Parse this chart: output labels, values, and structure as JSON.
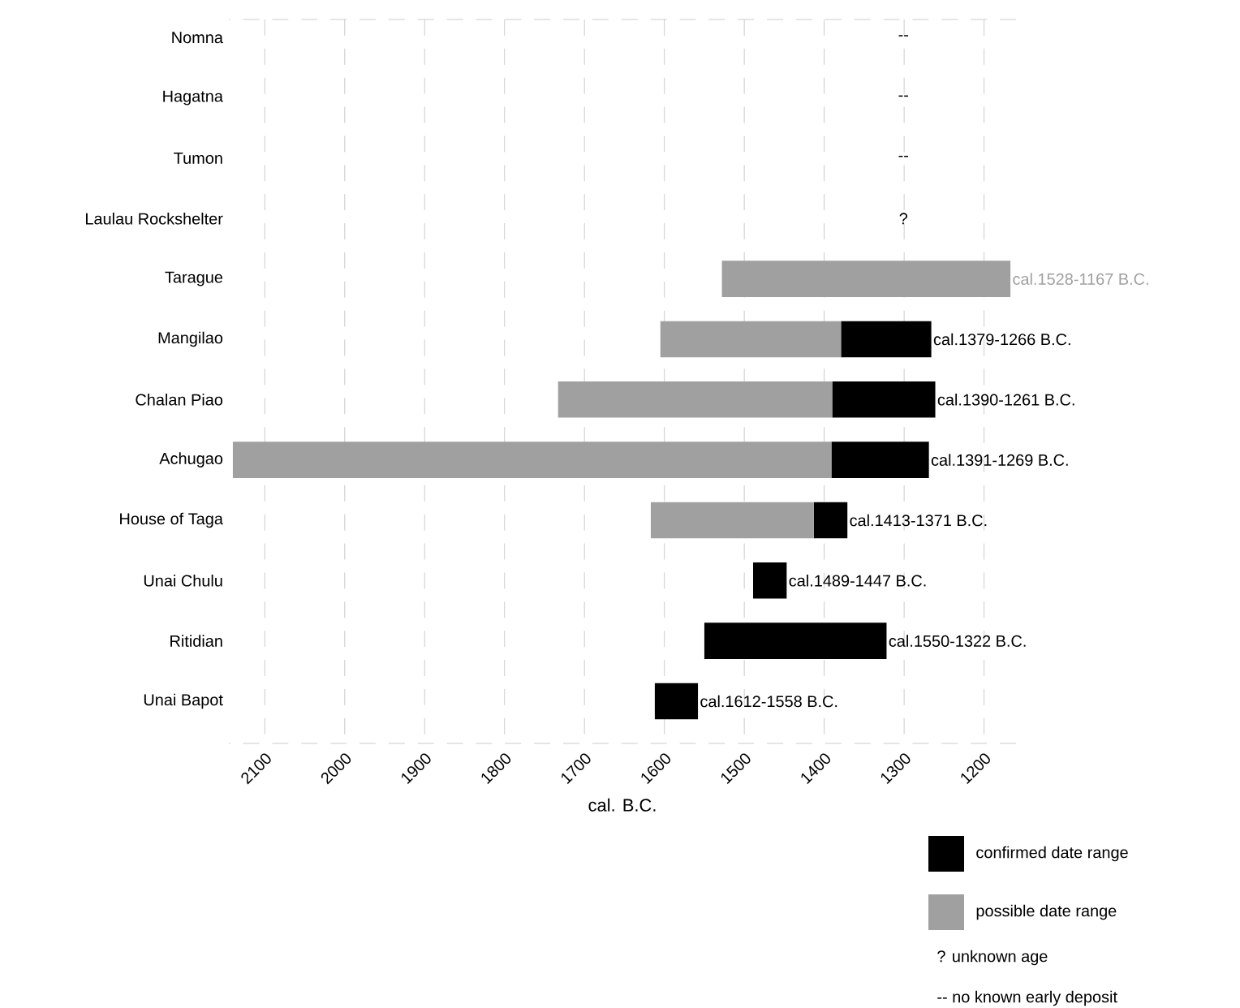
{
  "chart_data": {
    "type": "bar",
    "orientation": "horizontal",
    "xlabel": "cal. B.C.",
    "categories": [
      "Nomna",
      "Hagatna",
      "Tumon",
      "Laulau Rockshelter",
      "Tarague",
      "Mangilao",
      "Chalan Piao",
      "Achugao",
      "House of Taga",
      "Unai Chulu",
      "Ritidian",
      "Unai Bapot"
    ],
    "series": [
      {
        "name": "confirmed date range",
        "color": "#000000",
        "base": [
          null,
          null,
          null,
          null,
          null,
          1266,
          1261,
          1269,
          1371,
          1447,
          1322,
          1558
        ],
        "values": [
          null,
          null,
          null,
          null,
          null,
          113,
          129,
          122,
          42,
          42,
          228,
          54
        ],
        "value_labels": [
          null,
          null,
          null,
          null,
          null,
          "cal.1379-1266 B.C.",
          "cal.1390-1261 B.C.",
          "cal.1391-1269 B.C.",
          "cal.1413-1371 B.C.",
          "cal.1489-1447 B.C.",
          "cal.1550-1322 B.C.",
          "cal.1612-1558 B.C."
        ]
      },
      {
        "name": "possible date range",
        "color": "#a0a0a0",
        "base": [
          null,
          null,
          null,
          null,
          1167,
          1379,
          1390,
          1391,
          1413,
          null,
          null,
          null
        ],
        "values": [
          null,
          null,
          null,
          null,
          361,
          226,
          343,
          749,
          204,
          null,
          null,
          null
        ],
        "value_labels": [
          null,
          null,
          null,
          null,
          "cal.1528-1167 B.C.",
          null,
          null,
          null,
          null,
          null,
          null,
          null
        ]
      }
    ],
    "xlim": [
      2145,
      1160
    ],
    "xticks": [
      2100,
      2000,
      1900,
      1800,
      1700,
      1600,
      1500,
      1400,
      1300,
      1200
    ],
    "grid": "x",
    "legend": "bottom right",
    "annotations": [
      "--",
      "--",
      "--",
      "?",
      "?  unknown age",
      "--  no known early deposit"
    ]
  }
}
